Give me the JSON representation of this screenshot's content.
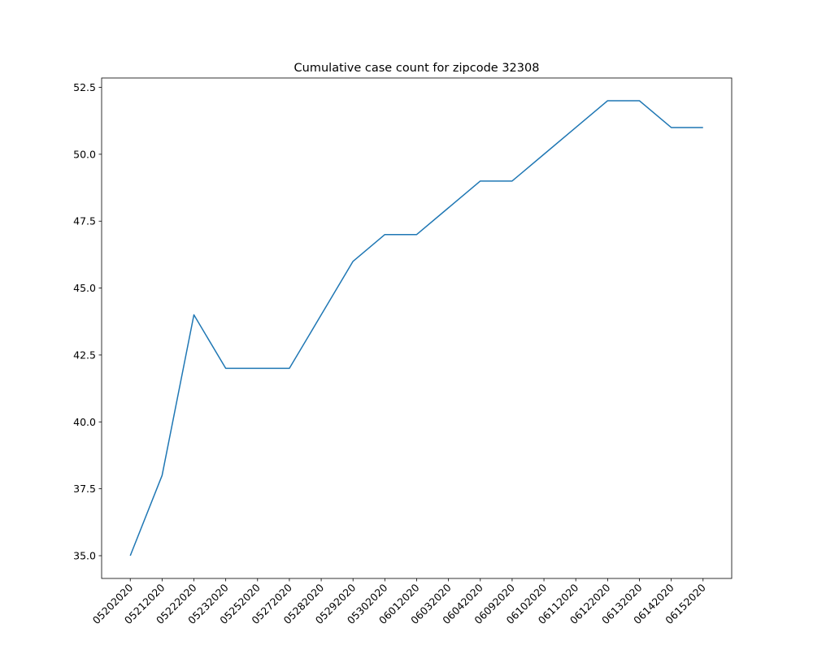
{
  "chart_data": {
    "type": "line",
    "title": "Cumulative case count for zipcode 32308",
    "xlabel": "",
    "ylabel": "",
    "categories": [
      "05202020",
      "05212020",
      "05222020",
      "05232020",
      "05252020",
      "05272020",
      "05282020",
      "05292020",
      "05302020",
      "06012020",
      "06032020",
      "06042020",
      "06092020",
      "06102020",
      "06112020",
      "06122020",
      "06132020",
      "06142020",
      "06152020"
    ],
    "series": [
      {
        "values": [
          35,
          38,
          44,
          42,
          42,
          42,
          44,
          46,
          47,
          47,
          48,
          49,
          49,
          50,
          51,
          52,
          52,
          51,
          51
        ]
      }
    ],
    "ylim": [
      34.15,
      52.85
    ],
    "yticks": [
      35.0,
      37.5,
      40.0,
      42.5,
      45.0,
      47.5,
      50.0,
      52.5
    ],
    "ytick_labels": [
      "35.0",
      "37.5",
      "40.0",
      "42.5",
      "45.0",
      "47.5",
      "50.0",
      "52.5"
    ],
    "grid": false,
    "line_color": "#1f77b4"
  }
}
